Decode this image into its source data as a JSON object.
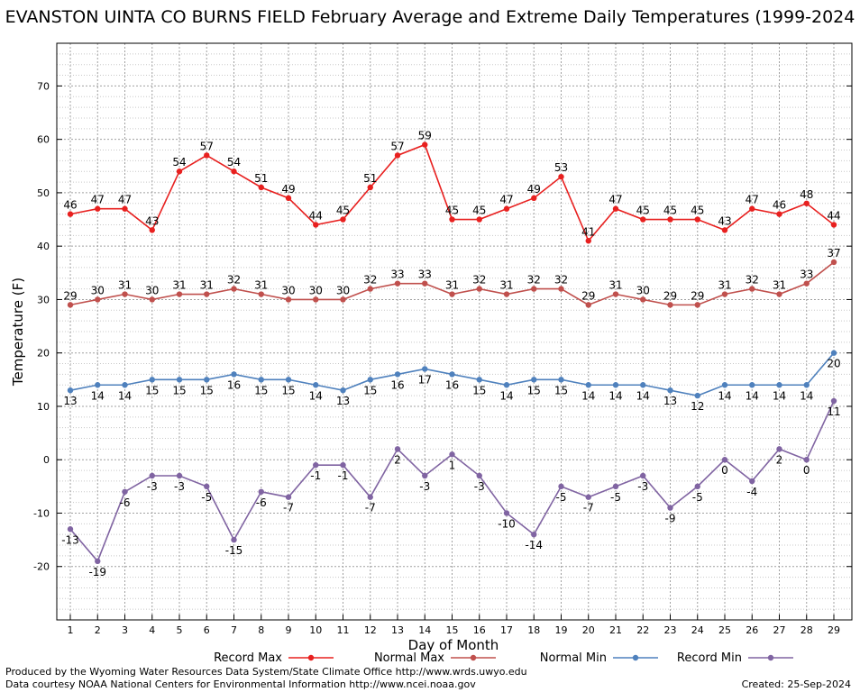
{
  "chart_data": {
    "type": "line",
    "title": "EVANSTON UINTA CO BURNS FIELD February Average and Extreme Daily Temperatures (1999-2024",
    "xlabel": "Day of Month",
    "ylabel": "Temperature (F)",
    "x": [
      1,
      2,
      3,
      4,
      5,
      6,
      7,
      8,
      9,
      10,
      11,
      12,
      13,
      14,
      15,
      16,
      17,
      18,
      19,
      20,
      21,
      22,
      23,
      24,
      25,
      26,
      27,
      28,
      29
    ],
    "ylim": [
      -30,
      78
    ],
    "y_ticks": [
      -20,
      -10,
      0,
      10,
      20,
      30,
      40,
      50,
      60,
      70
    ],
    "grid": true,
    "legend_position": "bottom",
    "series": [
      {
        "name": "Record Max",
        "color": "#e8201f",
        "values": [
          46,
          47,
          47,
          43,
          54,
          57,
          54,
          51,
          49,
          44,
          45,
          51,
          57,
          59,
          45,
          45,
          47,
          49,
          53,
          41,
          47,
          45,
          45,
          45,
          43,
          47,
          46,
          48,
          44
        ]
      },
      {
        "name": "Normal Max",
        "color": "#c0504d",
        "values": [
          29,
          30,
          31,
          30,
          31,
          31,
          32,
          31,
          30,
          30,
          30,
          32,
          33,
          33,
          31,
          32,
          31,
          32,
          32,
          29,
          31,
          30,
          29,
          29,
          31,
          32,
          31,
          33,
          37
        ]
      },
      {
        "name": "Normal Min",
        "color": "#4f81bd",
        "values": [
          13,
          14,
          14,
          15,
          15,
          15,
          16,
          15,
          15,
          14,
          13,
          15,
          16,
          17,
          16,
          15,
          14,
          15,
          15,
          14,
          14,
          14,
          13,
          12,
          14,
          14,
          14,
          14,
          20
        ]
      },
      {
        "name": "Record Min",
        "color": "#8064a2",
        "values": [
          -13,
          -19,
          -6,
          -3,
          -3,
          -5,
          -15,
          -6,
          -7,
          -1,
          -1,
          -7,
          2,
          -3,
          1,
          -3,
          -10,
          -14,
          -5,
          -7,
          -5,
          -3,
          -9,
          -5,
          0,
          -4,
          2,
          0,
          11
        ]
      }
    ]
  },
  "footer": {
    "line1": "Produced by the Wyoming Water Resources Data System/State Climate Office http://www.wrds.uwyo.edu",
    "line2": "Data courtesy NOAA National Centers for Environmental Information http://www.ncei.noaa.gov",
    "created": "Created:  25-Sep-2024"
  }
}
